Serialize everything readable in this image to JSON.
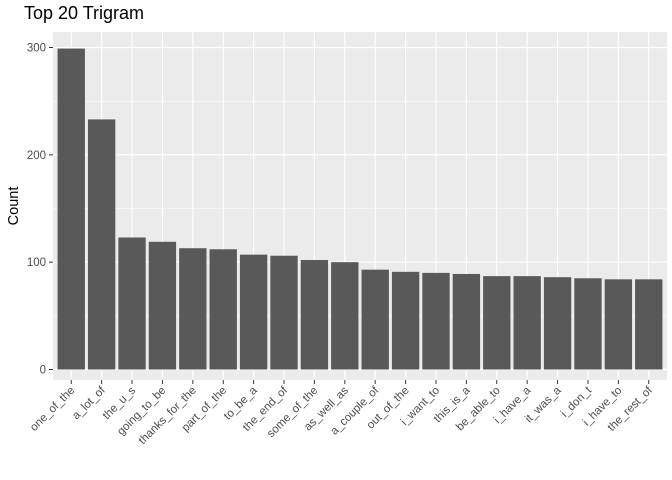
{
  "chart_data": {
    "type": "bar",
    "title": "Top 20 Trigram",
    "xlabel": "",
    "ylabel": "Count",
    "ylim": [
      0,
      300
    ],
    "yticks": [
      "0",
      "100",
      "200",
      "300"
    ],
    "grid": true,
    "legend": "none",
    "colors": {
      "panel_bg": "#EBEBEB",
      "grid": "#FFFFFF",
      "bar": "#595959",
      "tick_text": "#4D4D4D",
      "tick_mark": "#333333"
    },
    "categories": [
      "one_of_the",
      "a_lot_of",
      "the_u_s",
      "going_to_be",
      "thanks_for_the",
      "part_of_the",
      "to_be_a",
      "the_end_of",
      "some_of_the",
      "as_well_as",
      "a_couple_of",
      "out_of_the",
      "i_want_to",
      "this_is_a",
      "be_able_to",
      "i_have_a",
      "it_was_a",
      "i_don_t",
      "i_have_to",
      "the_rest_of"
    ],
    "values": [
      299,
      233,
      123,
      119,
      113,
      112,
      107,
      106,
      102,
      100,
      93,
      91,
      90,
      89,
      87,
      87,
      86,
      85,
      84,
      84
    ]
  }
}
